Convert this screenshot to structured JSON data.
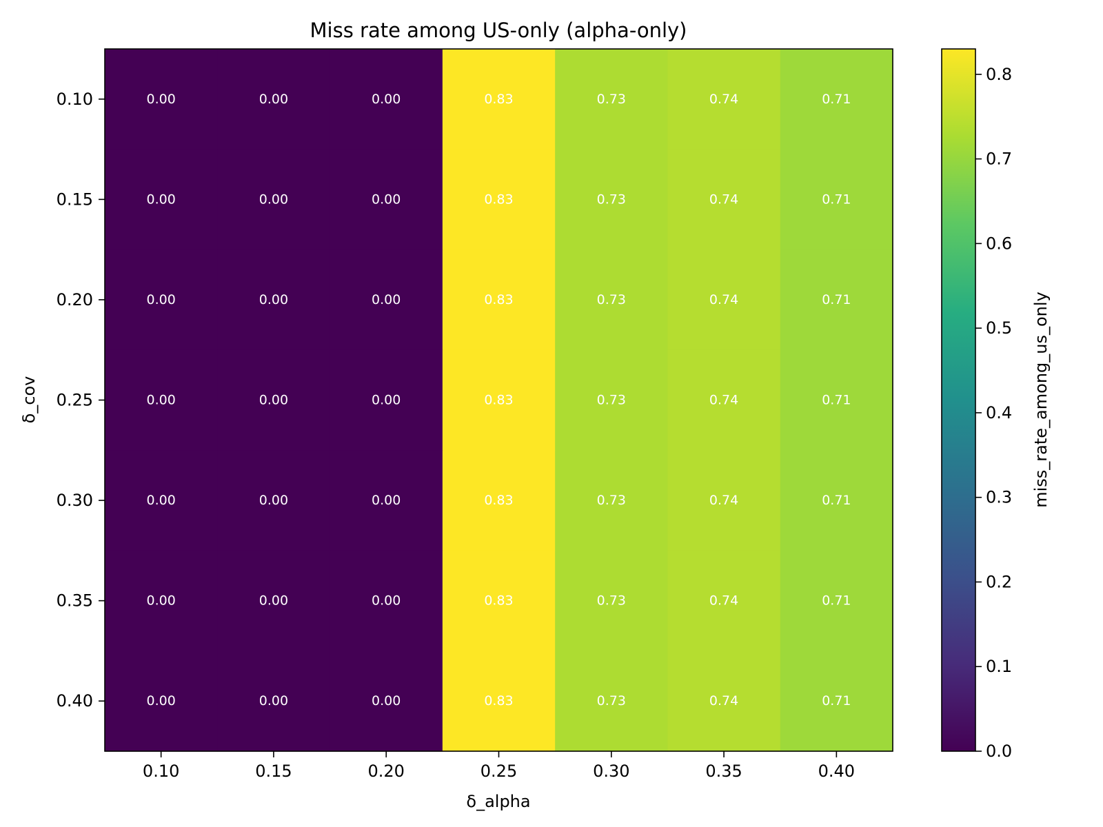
{
  "chart_data": {
    "type": "heatmap",
    "title": "Miss rate among US-only (alpha-only)",
    "xlabel": "δ_alpha",
    "ylabel": "δ_cov",
    "x_categories": [
      "0.10",
      "0.15",
      "0.20",
      "0.25",
      "0.30",
      "0.35",
      "0.40"
    ],
    "y_categories": [
      "0.10",
      "0.15",
      "0.20",
      "0.25",
      "0.30",
      "0.35",
      "0.40"
    ],
    "values": [
      [
        0.0,
        0.0,
        0.0,
        0.83,
        0.73,
        0.74,
        0.71
      ],
      [
        0.0,
        0.0,
        0.0,
        0.83,
        0.73,
        0.74,
        0.71
      ],
      [
        0.0,
        0.0,
        0.0,
        0.83,
        0.73,
        0.74,
        0.71
      ],
      [
        0.0,
        0.0,
        0.0,
        0.83,
        0.73,
        0.74,
        0.71
      ],
      [
        0.0,
        0.0,
        0.0,
        0.83,
        0.73,
        0.74,
        0.71
      ],
      [
        0.0,
        0.0,
        0.0,
        0.83,
        0.73,
        0.74,
        0.71
      ],
      [
        0.0,
        0.0,
        0.0,
        0.83,
        0.73,
        0.74,
        0.71
      ]
    ],
    "cell_labels": [
      [
        "0.00",
        "0.00",
        "0.00",
        "0.83",
        "0.73",
        "0.74",
        "0.71"
      ],
      [
        "0.00",
        "0.00",
        "0.00",
        "0.83",
        "0.73",
        "0.74",
        "0.71"
      ],
      [
        "0.00",
        "0.00",
        "0.00",
        "0.83",
        "0.73",
        "0.74",
        "0.71"
      ],
      [
        "0.00",
        "0.00",
        "0.00",
        "0.83",
        "0.73",
        "0.74",
        "0.71"
      ],
      [
        "0.00",
        "0.00",
        "0.00",
        "0.83",
        "0.73",
        "0.74",
        "0.71"
      ],
      [
        "0.00",
        "0.00",
        "0.00",
        "0.83",
        "0.73",
        "0.74",
        "0.71"
      ],
      [
        "0.00",
        "0.00",
        "0.00",
        "0.83",
        "0.73",
        "0.74",
        "0.71"
      ]
    ],
    "colormap": "viridis",
    "colorbar": {
      "label": "miss_rate_among_us_only",
      "vmin": 0.0,
      "vmax": 0.83,
      "ticks": [
        "0.0",
        "0.1",
        "0.2",
        "0.3",
        "0.4",
        "0.5",
        "0.6",
        "0.7",
        "0.8"
      ],
      "tick_values": [
        0.0,
        0.1,
        0.2,
        0.3,
        0.4,
        0.5,
        0.6,
        0.7,
        0.8
      ]
    },
    "grid": false
  }
}
